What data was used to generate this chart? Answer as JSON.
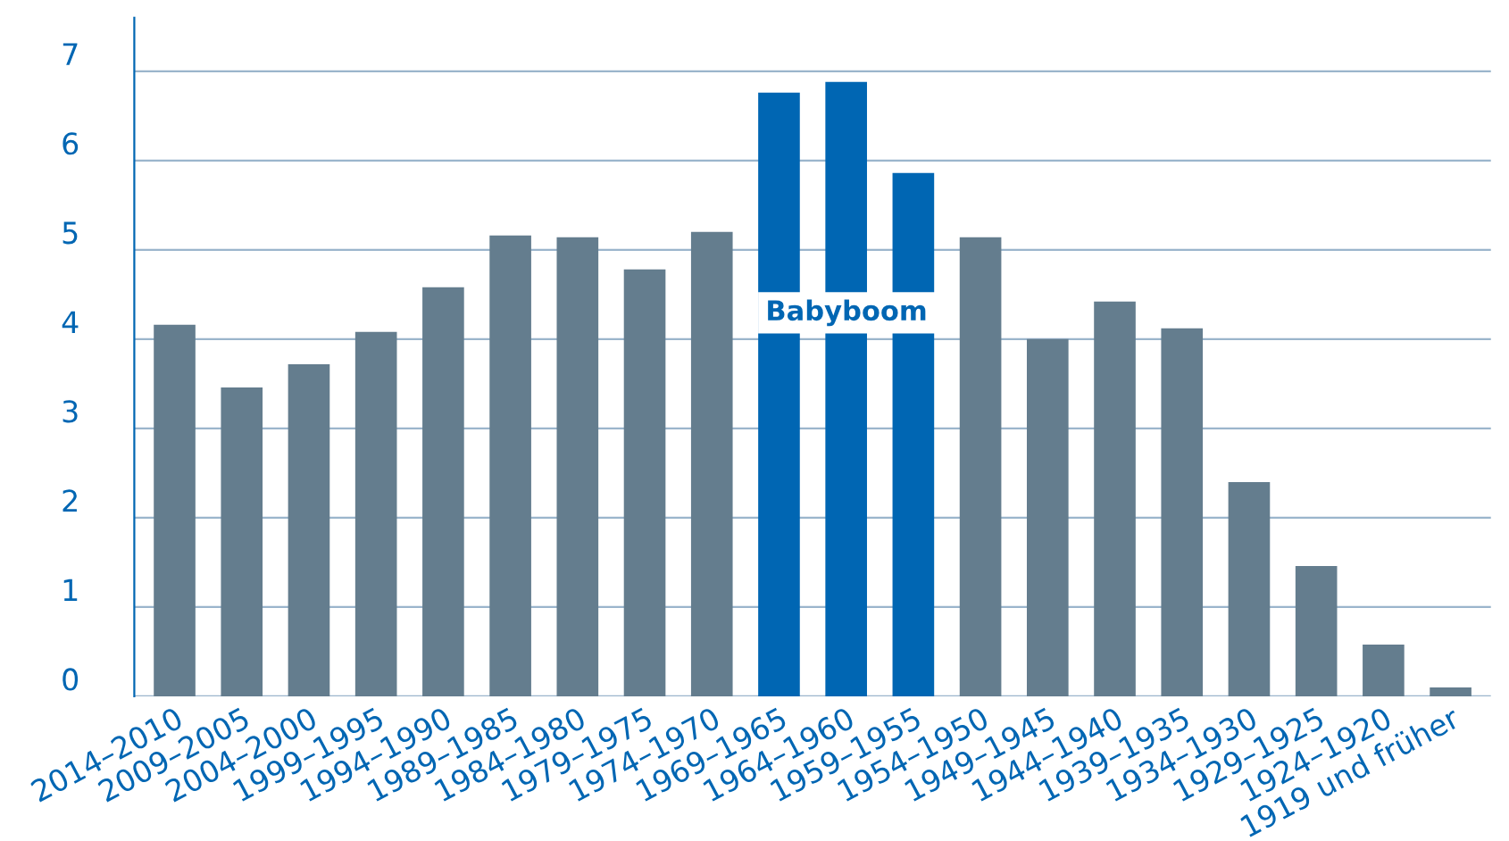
{
  "chart_data": {
    "type": "bar",
    "categories": [
      "2014–2010",
      "2009–2005",
      "2004–2000",
      "1999–1995",
      "1994–1990",
      "1989–1985",
      "1984–1980",
      "1979–1975",
      "1974–1970",
      "1969–1965",
      "1964–1960",
      "1959–1955",
      "1954–1950",
      "1949–1945",
      "1944–1940",
      "1939–1935",
      "1934–1930",
      "1929–1925",
      "1924–1920",
      "1919 und früher"
    ],
    "values": [
      4.16,
      3.46,
      3.72,
      4.08,
      4.58,
      5.16,
      5.14,
      4.78,
      5.2,
      6.76,
      6.88,
      5.86,
      5.14,
      4.0,
      4.42,
      4.12,
      2.4,
      1.46,
      0.58,
      0.1
    ],
    "colors": [
      "#647d8e",
      "#647d8e",
      "#647d8e",
      "#647d8e",
      "#647d8e",
      "#647d8e",
      "#647d8e",
      "#647d8e",
      "#647d8e",
      "#0066b3",
      "#0066b3",
      "#0066b3",
      "#647d8e",
      "#647d8e",
      "#647d8e",
      "#647d8e",
      "#647d8e",
      "#647d8e",
      "#647d8e",
      "#647d8e"
    ],
    "annotations": [
      "Babyboom"
    ],
    "ylim": [
      0,
      7.6
    ],
    "yticks": [
      0,
      1,
      2,
      3,
      4,
      5,
      6,
      7
    ],
    "grid": "y",
    "legend": false
  }
}
